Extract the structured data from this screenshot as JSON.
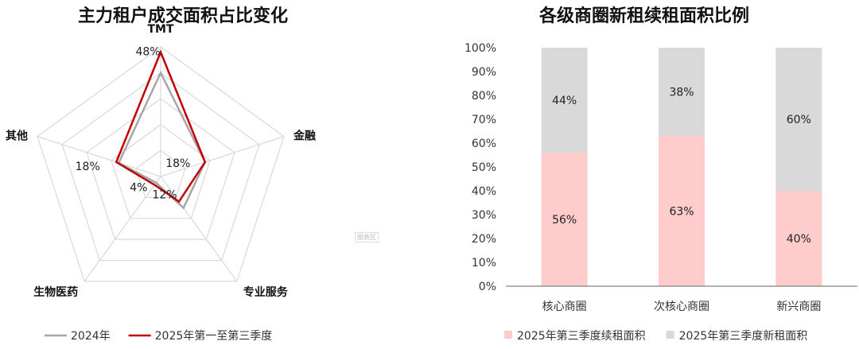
{
  "charts": {
    "radar": {
      "title": "主力租户成交面积占比变化",
      "watermark": "图表区"
    },
    "stacked": {
      "title": "各级商圈新租续租面积比例"
    }
  },
  "chart_data": [
    {
      "type": "radar",
      "title": "主力租户成交面积占比变化",
      "axes": [
        "TMT",
        "金融",
        "专业服务",
        "生物医药",
        "其他"
      ],
      "rmax": 50,
      "grid_levels": 5,
      "series": [
        {
          "name": "2024年",
          "color": "#a6a6a6",
          "values": [
            40,
            18,
            15,
            3,
            17
          ]
        },
        {
          "name": "2025年第一至第三季度",
          "color": "#c00000",
          "values": [
            48,
            18,
            12,
            4,
            18
          ]
        }
      ],
      "data_labels": [
        "48%",
        "18%",
        "12%",
        "4%",
        "18%"
      ],
      "legend_position": "bottom"
    },
    {
      "type": "bar",
      "stacked": true,
      "title": "各级商圈新租续租面积比例",
      "categories": [
        "核心商圈",
        "次核心商圈",
        "新兴商圈"
      ],
      "series": [
        {
          "name": "2025年第三季度续租面积",
          "color": "#ffcccc",
          "values": [
            56,
            63,
            40
          ]
        },
        {
          "name": "2025年第三季度新租面积",
          "color": "#d9d9d9",
          "values": [
            44,
            38,
            60
          ]
        }
      ],
      "ylim": [
        0,
        100
      ],
      "yticks": [
        "0%",
        "10%",
        "20%",
        "30%",
        "40%",
        "50%",
        "60%",
        "70%",
        "80%",
        "90%",
        "100%"
      ],
      "value_suffix": "%",
      "legend_position": "bottom"
    }
  ]
}
